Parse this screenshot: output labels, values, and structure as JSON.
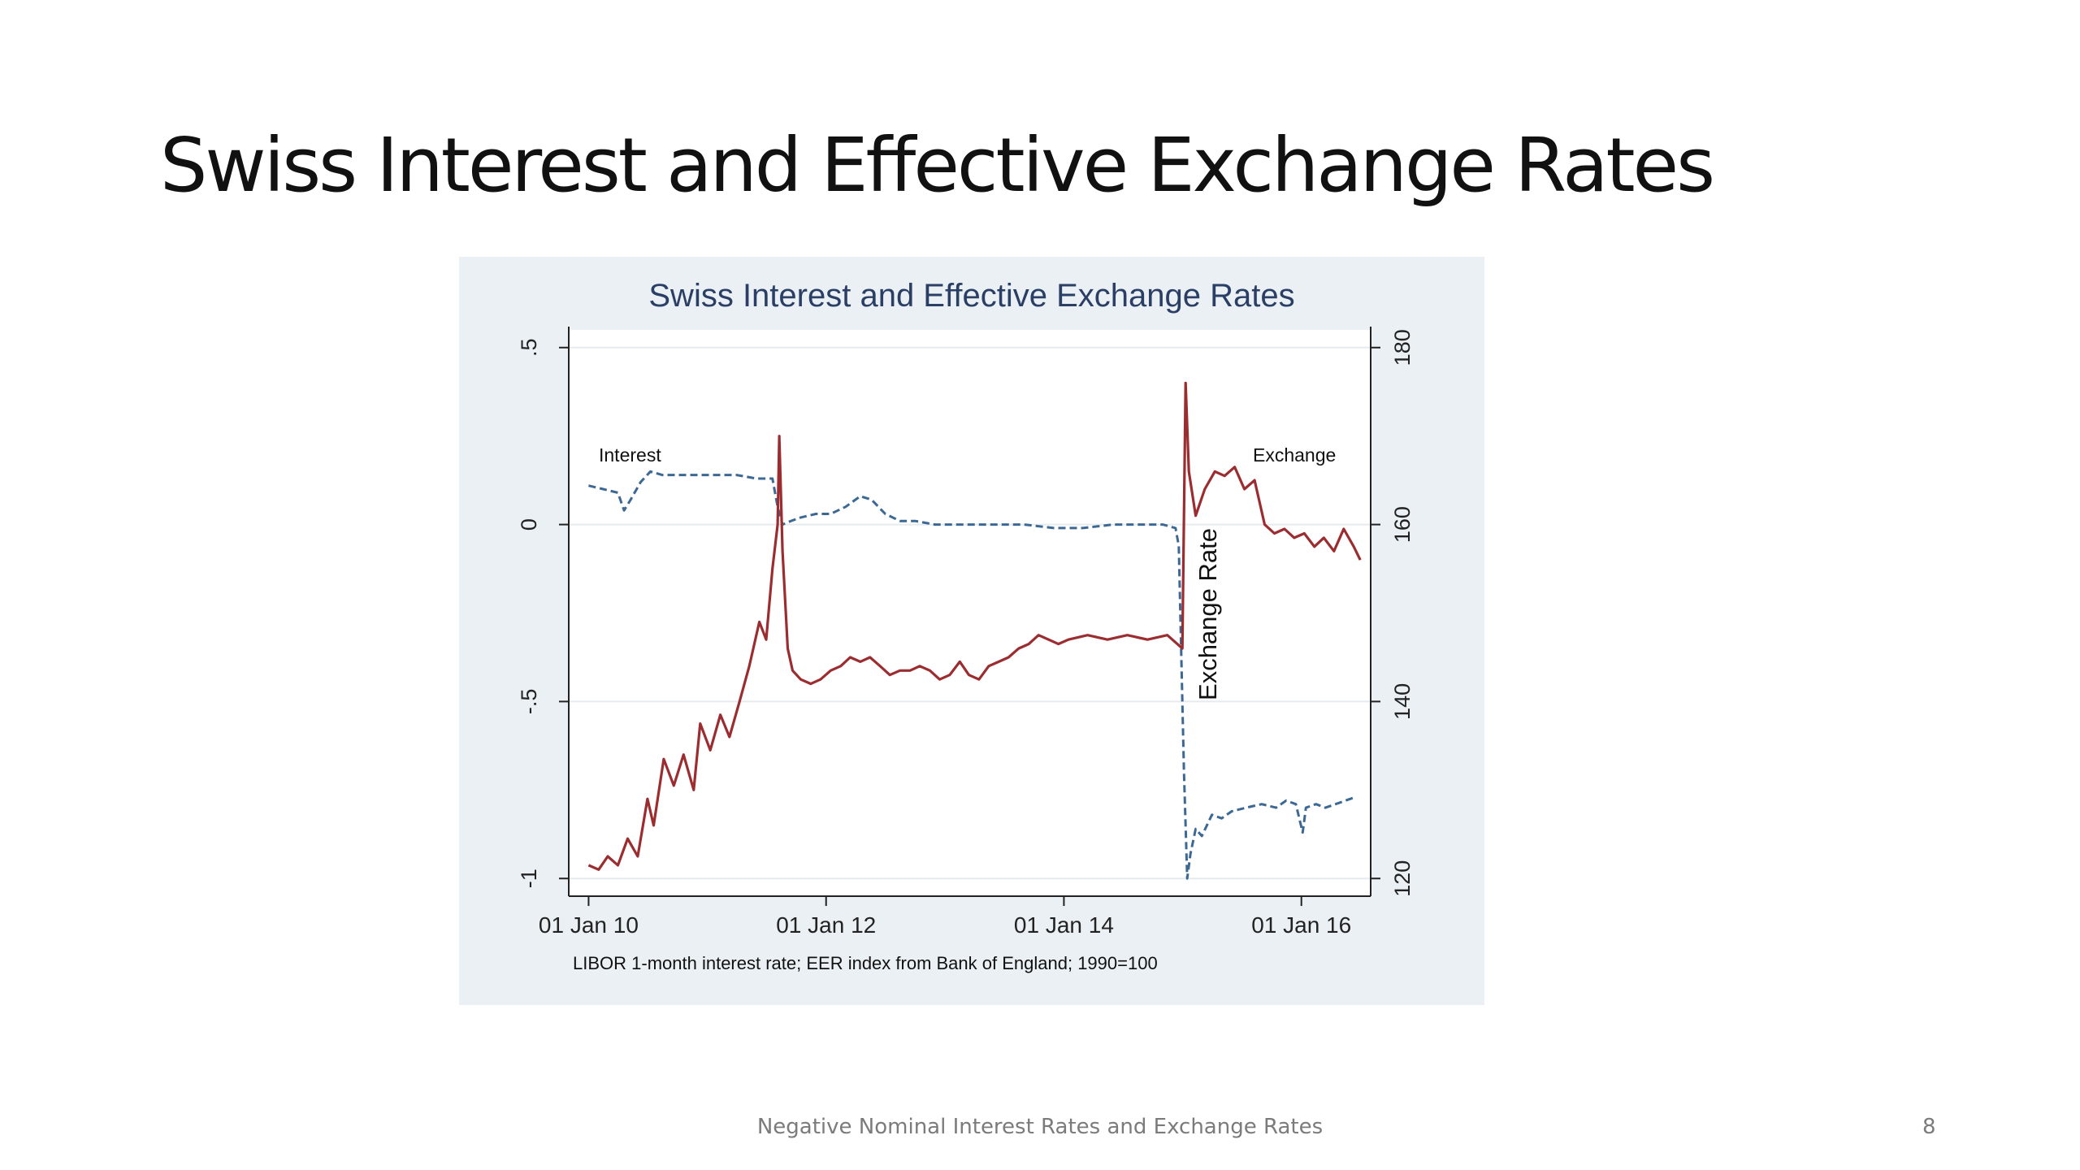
{
  "slide": {
    "title": "Swiss Interest and Effective Exchange Rates",
    "footer": "Negative Nominal Interest Rates and Exchange Rates",
    "page_number": "8"
  },
  "chart_data": {
    "type": "line",
    "title": "Swiss Interest and Effective Exchange Rates",
    "note": "LIBOR 1-month interest rate; EER index from Bank of England; 1990=100",
    "xlabel": "",
    "y_left_label": "",
    "y_right_label": "Exchange Rate",
    "x_ticks": [
      "01 Jan 10",
      "01 Jan 12",
      "01 Jan 14",
      "01 Jan 16"
    ],
    "y_left_ticks": [
      "-1",
      "-.5",
      "0",
      ".5"
    ],
    "y_right_ticks": [
      "120",
      "140",
      "160",
      "180"
    ],
    "xlim": [
      "2009-11-01",
      "2016-08-01"
    ],
    "ylim_left": [
      -1.05,
      0.55
    ],
    "ylim_right": [
      118,
      182
    ],
    "grid": true,
    "annotations": [
      "Interest",
      "Exchange"
    ],
    "colors": {
      "interest": "#3c6894",
      "exchange": "#9b2d30",
      "title": "#2b3f66",
      "background": "#eaf0f3",
      "plot": "#ffffff"
    },
    "series": [
      {
        "name": "Interest",
        "axis": "left",
        "style": "dashed",
        "points": [
          [
            "2010-01-01",
            0.11
          ],
          [
            "2010-02-15",
            0.1
          ],
          [
            "2010-04-01",
            0.09
          ],
          [
            "2010-04-20",
            0.04
          ],
          [
            "2010-05-10",
            0.07
          ],
          [
            "2010-06-10",
            0.12
          ],
          [
            "2010-07-10",
            0.15
          ],
          [
            "2010-08-15",
            0.14
          ],
          [
            "2010-10-01",
            0.14
          ],
          [
            "2010-12-01",
            0.14
          ],
          [
            "2011-02-01",
            0.14
          ],
          [
            "2011-04-01",
            0.14
          ],
          [
            "2011-06-01",
            0.13
          ],
          [
            "2011-07-20",
            0.13
          ],
          [
            "2011-08-05",
            0.05
          ],
          [
            "2011-08-20",
            0.0
          ],
          [
            "2011-09-15",
            0.01
          ],
          [
            "2011-10-15",
            0.02
          ],
          [
            "2011-12-01",
            0.03
          ],
          [
            "2012-01-15",
            0.03
          ],
          [
            "2012-03-01",
            0.05
          ],
          [
            "2012-04-15",
            0.08
          ],
          [
            "2012-05-20",
            0.07
          ],
          [
            "2012-07-01",
            0.03
          ],
          [
            "2012-08-15",
            0.01
          ],
          [
            "2012-10-01",
            0.01
          ],
          [
            "2012-12-01",
            0.0
          ],
          [
            "2013-03-01",
            0.0
          ],
          [
            "2013-06-01",
            0.0
          ],
          [
            "2013-09-01",
            0.0
          ],
          [
            "2013-12-01",
            -0.01
          ],
          [
            "2014-03-01",
            -0.01
          ],
          [
            "2014-06-01",
            0.0
          ],
          [
            "2014-09-01",
            0.0
          ],
          [
            "2014-11-01",
            0.0
          ],
          [
            "2014-12-10",
            -0.01
          ],
          [
            "2014-12-20",
            -0.06
          ],
          [
            "2015-01-05",
            -0.7
          ],
          [
            "2015-01-15",
            -1.0
          ],
          [
            "2015-01-25",
            -0.93
          ],
          [
            "2015-02-10",
            -0.86
          ],
          [
            "2015-03-01",
            -0.88
          ],
          [
            "2015-04-01",
            -0.82
          ],
          [
            "2015-05-01",
            -0.83
          ],
          [
            "2015-06-01",
            -0.81
          ],
          [
            "2015-07-15",
            -0.8
          ],
          [
            "2015-09-01",
            -0.79
          ],
          [
            "2015-10-15",
            -0.8
          ],
          [
            "2015-11-15",
            -0.78
          ],
          [
            "2015-12-15",
            -0.79
          ],
          [
            "2016-01-05",
            -0.87
          ],
          [
            "2016-01-15",
            -0.8
          ],
          [
            "2016-02-15",
            -0.79
          ],
          [
            "2016-03-15",
            -0.8
          ],
          [
            "2016-04-15",
            -0.79
          ],
          [
            "2016-05-15",
            -0.78
          ],
          [
            "2016-06-15",
            -0.77
          ]
        ]
      },
      {
        "name": "Exchange",
        "axis": "right",
        "style": "solid",
        "points": [
          [
            "2010-01-01",
            121.5
          ],
          [
            "2010-02-01",
            121.0
          ],
          [
            "2010-03-01",
            122.5
          ],
          [
            "2010-04-01",
            121.5
          ],
          [
            "2010-05-01",
            124.5
          ],
          [
            "2010-06-01",
            122.5
          ],
          [
            "2010-07-01",
            129.0
          ],
          [
            "2010-07-20",
            126.0
          ],
          [
            "2010-08-20",
            133.5
          ],
          [
            "2010-09-20",
            130.5
          ],
          [
            "2010-10-20",
            134.0
          ],
          [
            "2010-11-20",
            130.0
          ],
          [
            "2010-12-10",
            137.5
          ],
          [
            "2011-01-10",
            134.5
          ],
          [
            "2011-02-10",
            138.5
          ],
          [
            "2011-03-10",
            136.0
          ],
          [
            "2011-04-10",
            140.0
          ],
          [
            "2011-05-10",
            144.0
          ],
          [
            "2011-06-10",
            149.0
          ],
          [
            "2011-07-01",
            147.0
          ],
          [
            "2011-07-20",
            155.0
          ],
          [
            "2011-08-05",
            160.0
          ],
          [
            "2011-08-10",
            170.0
          ],
          [
            "2011-08-20",
            157.0
          ],
          [
            "2011-09-05",
            146.0
          ],
          [
            "2011-09-20",
            143.5
          ],
          [
            "2011-10-15",
            142.5
          ],
          [
            "2011-11-15",
            142.0
          ],
          [
            "2011-12-15",
            142.5
          ],
          [
            "2012-01-15",
            143.5
          ],
          [
            "2012-02-15",
            144.0
          ],
          [
            "2012-03-15",
            145.0
          ],
          [
            "2012-04-15",
            144.5
          ],
          [
            "2012-05-15",
            145.0
          ],
          [
            "2012-06-15",
            144.0
          ],
          [
            "2012-07-15",
            143.0
          ],
          [
            "2012-08-15",
            143.5
          ],
          [
            "2012-09-15",
            143.5
          ],
          [
            "2012-10-15",
            144.0
          ],
          [
            "2012-11-15",
            143.5
          ],
          [
            "2012-12-15",
            142.5
          ],
          [
            "2013-01-15",
            143.0
          ],
          [
            "2013-02-15",
            144.5
          ],
          [
            "2013-03-15",
            143.0
          ],
          [
            "2013-04-15",
            142.5
          ],
          [
            "2013-05-15",
            144.0
          ],
          [
            "2013-06-15",
            144.5
          ],
          [
            "2013-07-15",
            145.0
          ],
          [
            "2013-08-15",
            146.0
          ],
          [
            "2013-09-15",
            146.5
          ],
          [
            "2013-10-15",
            147.5
          ],
          [
            "2013-11-15",
            147.0
          ],
          [
            "2013-12-15",
            146.5
          ],
          [
            "2014-01-15",
            147.0
          ],
          [
            "2014-03-15",
            147.5
          ],
          [
            "2014-05-15",
            147.0
          ],
          [
            "2014-07-15",
            147.5
          ],
          [
            "2014-09-15",
            147.0
          ],
          [
            "2014-11-15",
            147.5
          ],
          [
            "2014-12-31",
            146.0
          ],
          [
            "2015-01-10",
            176.0
          ],
          [
            "2015-01-20",
            166.0
          ],
          [
            "2015-02-10",
            161.0
          ],
          [
            "2015-03-10",
            164.0
          ],
          [
            "2015-04-10",
            166.0
          ],
          [
            "2015-05-10",
            165.5
          ],
          [
            "2015-06-10",
            166.5
          ],
          [
            "2015-07-10",
            164.0
          ],
          [
            "2015-08-10",
            165.0
          ],
          [
            "2015-09-10",
            160.0
          ],
          [
            "2015-10-10",
            159.0
          ],
          [
            "2015-11-10",
            159.5
          ],
          [
            "2015-12-10",
            158.5
          ],
          [
            "2016-01-10",
            159.0
          ],
          [
            "2016-02-10",
            157.5
          ],
          [
            "2016-03-10",
            158.5
          ],
          [
            "2016-04-10",
            157.0
          ],
          [
            "2016-05-10",
            159.5
          ],
          [
            "2016-06-10",
            157.5
          ],
          [
            "2016-06-30",
            156.0
          ]
        ]
      }
    ]
  }
}
